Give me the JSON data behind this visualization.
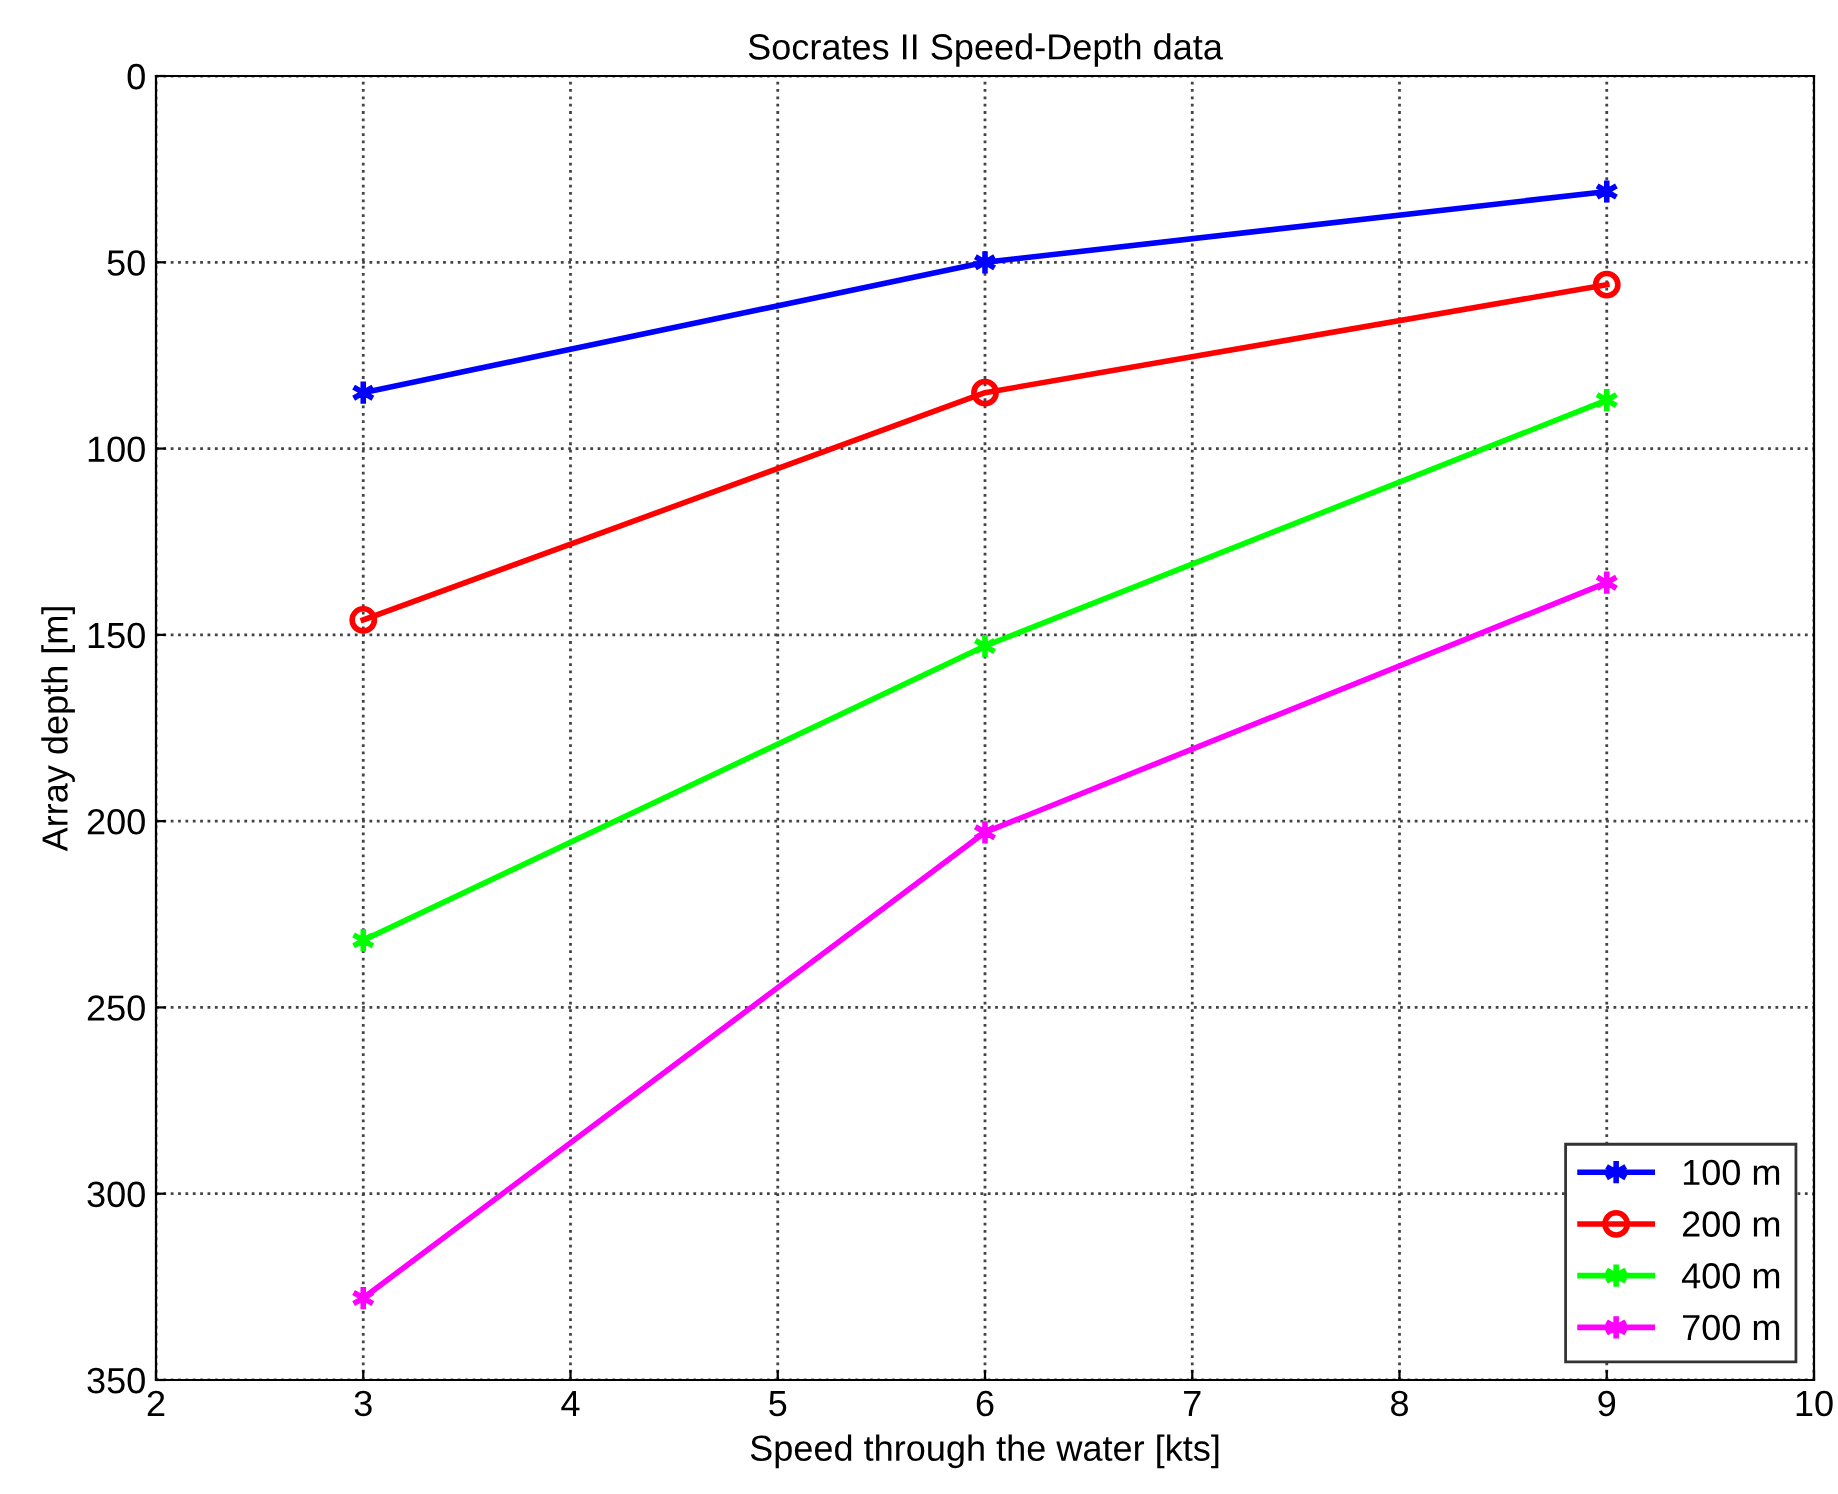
{
  "chart_data": {
    "type": "line",
    "title": "Socrates II Speed-Depth data",
    "xlabel": "Speed through the water [kts]",
    "ylabel": "Array depth [m]",
    "x": [
      3,
      6,
      9
    ],
    "series": [
      {
        "name": "100 m",
        "color": "#0000ff",
        "marker": "cross",
        "values": [
          85,
          50,
          31
        ]
      },
      {
        "name": "200 m",
        "color": "#ff0000",
        "marker": "circle",
        "values": [
          146,
          85,
          56
        ]
      },
      {
        "name": "400 m",
        "color": "#00ff00",
        "marker": "cross",
        "values": [
          232,
          153,
          87
        ]
      },
      {
        "name": "700 m",
        "color": "#ff00ff",
        "marker": "cross",
        "values": [
          328,
          203,
          136
        ]
      }
    ],
    "xlim": [
      2,
      10
    ],
    "xticks": [
      2,
      3,
      4,
      5,
      6,
      7,
      8,
      9,
      10
    ],
    "ylim": [
      350,
      0
    ],
    "yticks": [
      0,
      50,
      100,
      150,
      200,
      250,
      300,
      350
    ],
    "grid": true,
    "legend": "bottom right",
    "line_style": "solid"
  }
}
